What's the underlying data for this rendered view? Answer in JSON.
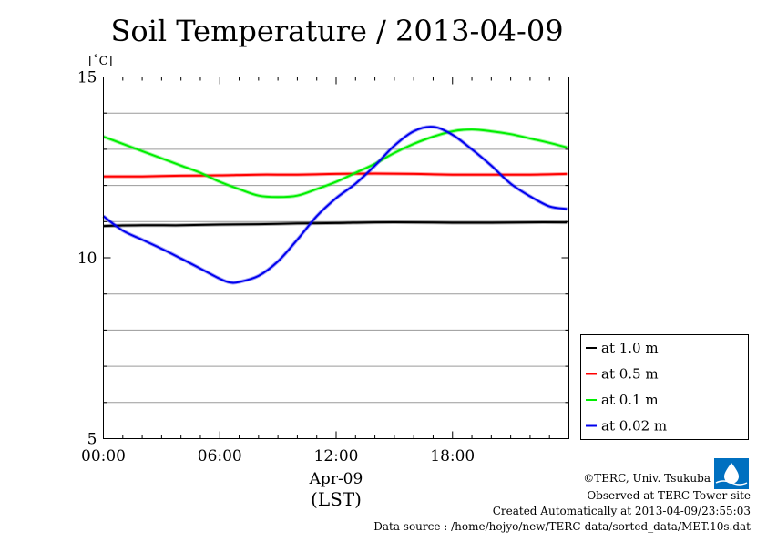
{
  "chart_data": {
    "type": "line",
    "title": "Soil Temperature / 2013-04-09",
    "yunit": "[˚C]",
    "ylim": [
      5,
      15
    ],
    "yticks": [
      5,
      10,
      15
    ],
    "ygrid": [
      6,
      7,
      8,
      9,
      11,
      12,
      13,
      14
    ],
    "xlim": [
      0,
      24
    ],
    "xticks": [
      {
        "value": 0,
        "label": "00:00"
      },
      {
        "value": 6,
        "label": "06:00"
      },
      {
        "value": 12,
        "label": "12:00"
      },
      {
        "value": 18,
        "label": "18:00"
      }
    ],
    "xlabel_date": "Apr-09",
    "xlabel_tz": "(LST)",
    "grid": true,
    "legend_position": "right",
    "series": [
      {
        "name": "at 1.0 m",
        "color": "#000000",
        "x": [
          0,
          2,
          4,
          6,
          8,
          10,
          12,
          14,
          16,
          18,
          20,
          22,
          23.9
        ],
        "y": [
          10.88,
          10.9,
          10.9,
          10.92,
          10.93,
          10.95,
          10.96,
          10.98,
          10.98,
          10.97,
          10.97,
          10.98,
          10.98
        ]
      },
      {
        "name": "at 0.5 m",
        "color": "#ff0000",
        "x": [
          0,
          2,
          4,
          6,
          8,
          10,
          12,
          14,
          16,
          18,
          20,
          22,
          23.9
        ],
        "y": [
          12.25,
          12.25,
          12.27,
          12.28,
          12.3,
          12.3,
          12.32,
          12.33,
          12.32,
          12.3,
          12.3,
          12.3,
          12.32
        ]
      },
      {
        "name": "at 0.1 m",
        "color": "#00ee00",
        "x": [
          0,
          1,
          2,
          3,
          4,
          5,
          6,
          7,
          8,
          9,
          10,
          11,
          12,
          13,
          14,
          15,
          16,
          17,
          18,
          19,
          20,
          21,
          22,
          23,
          23.9
        ],
        "y": [
          13.35,
          13.15,
          12.95,
          12.75,
          12.55,
          12.35,
          12.1,
          11.9,
          11.72,
          11.68,
          11.72,
          11.9,
          12.1,
          12.35,
          12.6,
          12.9,
          13.15,
          13.35,
          13.5,
          13.55,
          13.5,
          13.42,
          13.3,
          13.18,
          13.05
        ]
      },
      {
        "name": "at 0.02 m",
        "color": "#0000ee",
        "x": [
          0,
          1,
          2,
          3,
          4,
          5,
          6,
          6.5,
          7,
          8,
          9,
          10,
          11,
          12,
          13,
          14,
          15,
          16,
          17,
          18,
          19,
          20,
          21,
          22,
          23,
          23.9
        ],
        "y": [
          11.15,
          10.75,
          10.5,
          10.25,
          9.98,
          9.7,
          9.42,
          9.32,
          9.33,
          9.5,
          9.9,
          10.5,
          11.15,
          11.65,
          12.05,
          12.55,
          13.1,
          13.5,
          13.62,
          13.4,
          13.0,
          12.55,
          12.05,
          11.7,
          11.42,
          11.35
        ]
      }
    ]
  },
  "footer": {
    "copyright": "©TERC, Univ. Tsukuba",
    "observed": "Observed at TERC Tower site",
    "created": "Created Automatically at 2013-04-09/23:55:03",
    "source": "Data source : /home/hojyo/new/TERC-data/sorted_data/MET.10s.dat"
  },
  "logo": {
    "text": "TERC",
    "color": "#0070c0"
  }
}
